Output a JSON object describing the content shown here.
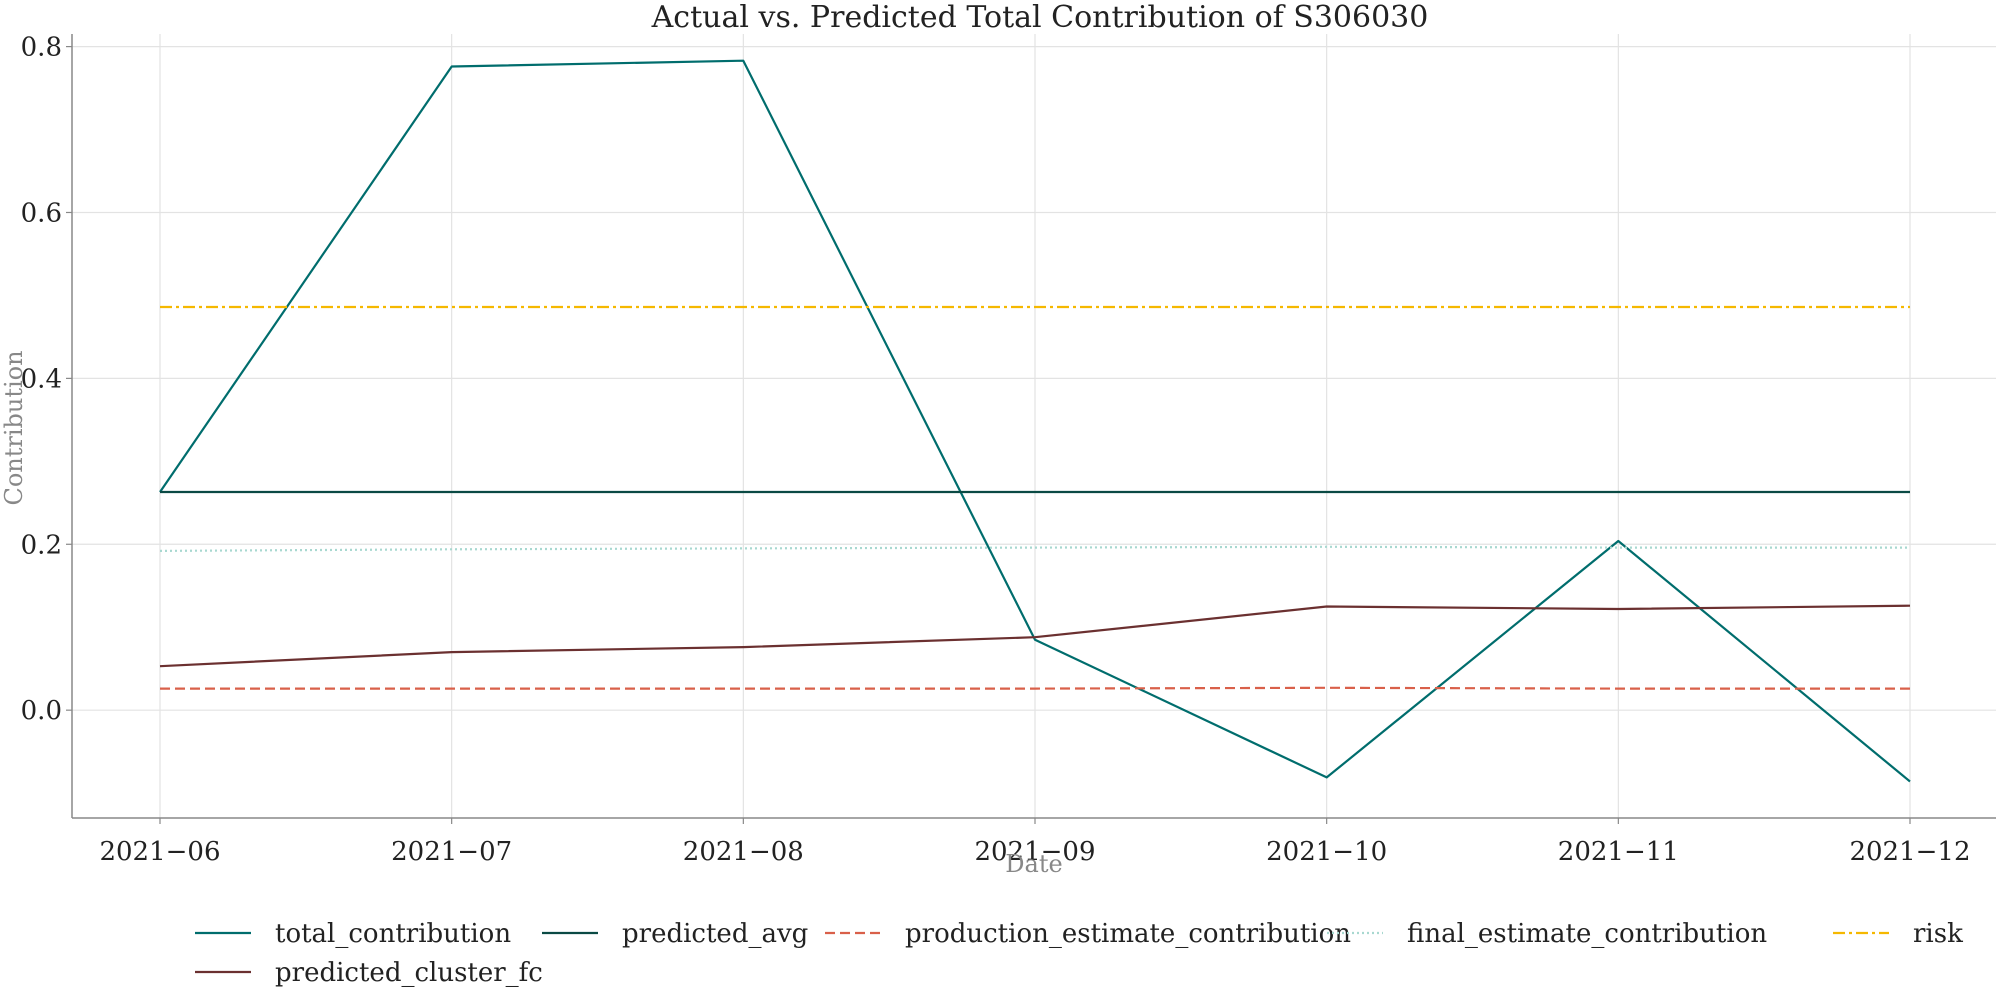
{
  "chart_data": {
    "type": "line",
    "title": "Actual vs. Predicted Total Contribution of S306030",
    "xlabel": "Date",
    "ylabel": "Contribution",
    "x": [
      "2021-06",
      "2021-07",
      "2021-08",
      "2021-09",
      "2021-10",
      "2021-11",
      "2021-12"
    ],
    "x_tick_labels": [
      "2021−06",
      "2021−07",
      "2021−08",
      "2021−09",
      "2021−10",
      "2021−11",
      "2021−12"
    ],
    "y_ticks": [
      0.0,
      0.2,
      0.4,
      0.6,
      0.8
    ],
    "y_tick_labels": [
      "0.0",
      "0.2",
      "0.4",
      "0.6",
      "0.8"
    ],
    "ylim": [
      -0.13,
      0.82
    ],
    "grid": true,
    "legend_position": "bottom",
    "series": [
      {
        "name": "total_contribution",
        "color": "#006d6d",
        "dash": "solid",
        "values": [
          0.263,
          0.776,
          0.783,
          0.085,
          -0.081,
          0.204,
          -0.086
        ]
      },
      {
        "name": "predicted_avg",
        "color": "#0a4a44",
        "dash": "solid",
        "values": [
          0.263,
          0.263,
          0.263,
          0.263,
          0.263,
          0.263,
          0.263
        ]
      },
      {
        "name": "production_estimate_contribution",
        "color": "#d9604a",
        "dash": "dashed",
        "values": [
          0.026,
          0.026,
          0.026,
          0.026,
          0.027,
          0.026,
          0.026
        ]
      },
      {
        "name": "final_estimate_contribution",
        "color": "#a8d8d0",
        "dash": "dotted",
        "values": [
          0.192,
          0.194,
          0.195,
          0.196,
          0.197,
          0.196,
          0.196
        ]
      },
      {
        "name": "risk",
        "color": "#f5b800",
        "dash": "dashdot",
        "values": [
          0.486,
          0.486,
          0.486,
          0.486,
          0.486,
          0.486,
          0.486
        ]
      },
      {
        "name": "predicted_cluster_fc",
        "color": "#6b3030",
        "dash": "solid",
        "values": [
          0.053,
          0.07,
          0.076,
          0.088,
          0.125,
          0.122,
          0.126
        ]
      }
    ]
  }
}
